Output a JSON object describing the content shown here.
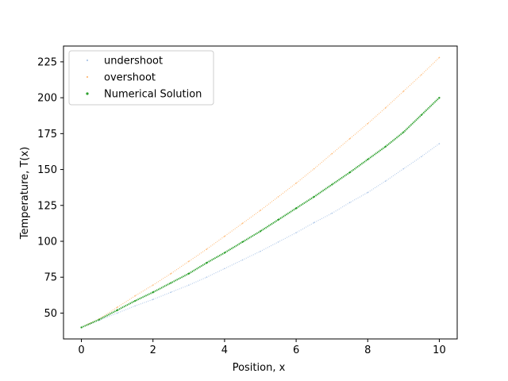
{
  "chart_data": {
    "type": "scatter",
    "title": "",
    "xlabel": "Position, x",
    "ylabel": "Temperature, T(x)",
    "xlim": [
      -0.5,
      10.5
    ],
    "ylim": [
      32,
      236
    ],
    "xticks": [
      0,
      2,
      4,
      6,
      8,
      10
    ],
    "yticks": [
      50,
      75,
      100,
      125,
      150,
      175,
      200,
      225
    ],
    "grid": false,
    "legend_position": "upper-left",
    "series": [
      {
        "name": "undershoot",
        "color": "#aec7e8",
        "x": [
          0,
          0.5,
          1,
          1.5,
          2,
          2.5,
          3,
          3.5,
          4,
          4.5,
          5,
          5.5,
          6,
          6.5,
          7,
          7.5,
          8,
          8.5,
          9,
          9.5,
          10
        ],
        "y": [
          40,
          45,
          50,
          55,
          59.5,
          64.5,
          69.5,
          75,
          81,
          87,
          93,
          99.5,
          106,
          113,
          119.5,
          127,
          134,
          142,
          150.5,
          159,
          168
        ]
      },
      {
        "name": "overshoot",
        "color": "#ffbb78",
        "x": [
          0,
          0.5,
          1,
          1.5,
          2,
          2.5,
          3,
          3.5,
          4,
          4.5,
          5,
          5.5,
          6,
          6.5,
          7,
          7.5,
          8,
          8.5,
          9,
          9.5,
          10
        ],
        "y": [
          40,
          46,
          54,
          62,
          69.5,
          77.5,
          86,
          94.5,
          103.5,
          112.5,
          121.5,
          131,
          140.5,
          150.5,
          161,
          171.5,
          182,
          193,
          204.5,
          216,
          228
        ]
      },
      {
        "name": "Numerical Solution",
        "color": "#2ca02c",
        "x": [
          0,
          0.5,
          1,
          1.5,
          2,
          2.5,
          3,
          3.5,
          4,
          4.5,
          5,
          5.5,
          6,
          6.5,
          7,
          7.5,
          8,
          8.5,
          9,
          9.5,
          10
        ],
        "y": [
          40,
          45.5,
          52,
          58.5,
          64.5,
          71,
          77.5,
          85,
          92,
          99.5,
          107,
          115,
          123,
          131,
          139.5,
          148,
          157,
          166,
          176,
          188,
          200
        ]
      }
    ]
  }
}
